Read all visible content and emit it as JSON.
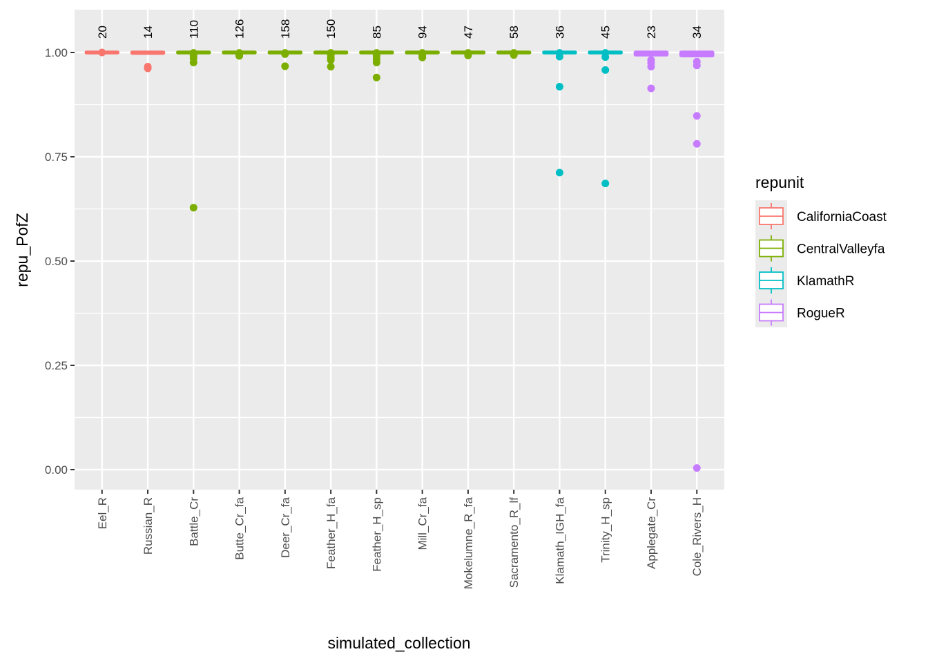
{
  "chart_data": {
    "type": "boxplot",
    "title": "",
    "xlabel": "simulated_collection",
    "ylabel": "repu_PofZ",
    "ylim": [
      -0.04,
      1.1
    ],
    "yticks": [
      0.0,
      0.25,
      0.5,
      0.75,
      1.0
    ],
    "ytick_labels": [
      "0.00",
      "0.25",
      "0.50",
      "0.75",
      "1.00"
    ],
    "grid": true,
    "legend": {
      "title": "repunit",
      "position": "right",
      "entries": [
        {
          "name": "CaliforniaCoast",
          "color": "#F8766D"
        },
        {
          "name": "CentralValleyfa",
          "color": "#7CAE00"
        },
        {
          "name": "KlamathR",
          "color": "#00BFC4"
        },
        {
          "name": "RogueR",
          "color": "#C77CFF"
        }
      ]
    },
    "categories": [
      {
        "name": "Eel_R",
        "repunit": "CaliforniaCoast",
        "n": "20",
        "median": 1.0,
        "q1": 1.0,
        "q3": 1.0,
        "outliers": [
          1.0
        ]
      },
      {
        "name": "Russian_R",
        "repunit": "CaliforniaCoast",
        "n": "14",
        "median": 1.0,
        "q1": 0.999,
        "q3": 1.0,
        "outliers": [
          0.966,
          0.962
        ]
      },
      {
        "name": "Battle_Cr",
        "repunit": "CentralValleyfa",
        "n": "110",
        "median": 1.0,
        "q1": 1.0,
        "q3": 1.0,
        "outliers": [
          0.999,
          0.993,
          0.986,
          0.976,
          0.628
        ]
      },
      {
        "name": "Butte_Cr_fa",
        "repunit": "CentralValleyfa",
        "n": "126",
        "median": 1.0,
        "q1": 1.0,
        "q3": 1.0,
        "outliers": [
          0.999,
          0.995,
          0.992
        ]
      },
      {
        "name": "Deer_Cr_fa",
        "repunit": "CentralValleyfa",
        "n": "158",
        "median": 1.0,
        "q1": 1.0,
        "q3": 1.0,
        "outliers": [
          0.999,
          0.996,
          0.967
        ]
      },
      {
        "name": "Feather_H_fa",
        "repunit": "CentralValleyfa",
        "n": "150",
        "median": 1.0,
        "q1": 1.0,
        "q3": 1.0,
        "outliers": [
          0.999,
          0.994,
          0.988,
          0.982,
          0.966
        ]
      },
      {
        "name": "Feather_H_sp",
        "repunit": "CentralValleyfa",
        "n": "85",
        "median": 1.0,
        "q1": 1.0,
        "q3": 1.0,
        "outliers": [
          0.999,
          0.992,
          0.984,
          0.976,
          0.94
        ]
      },
      {
        "name": "Mill_Cr_fa",
        "repunit": "CentralValleyfa",
        "n": "94",
        "median": 1.0,
        "q1": 1.0,
        "q3": 1.0,
        "outliers": [
          0.999,
          0.993,
          0.988
        ]
      },
      {
        "name": "Mokelumne_R_fa",
        "repunit": "CentralValleyfa",
        "n": "47",
        "median": 1.0,
        "q1": 1.0,
        "q3": 1.0,
        "outliers": [
          0.999,
          0.993
        ]
      },
      {
        "name": "Sacramento_R_lf",
        "repunit": "CentralValleyfa",
        "n": "58",
        "median": 1.0,
        "q1": 1.0,
        "q3": 1.0,
        "outliers": [
          0.999,
          0.994
        ]
      },
      {
        "name": "Klamath_IGH_fa",
        "repunit": "KlamathR",
        "n": "36",
        "median": 1.0,
        "q1": 1.0,
        "q3": 1.0,
        "outliers": [
          0.999,
          0.99,
          0.918,
          0.712
        ]
      },
      {
        "name": "Trinity_H_sp",
        "repunit": "KlamathR",
        "n": "45",
        "median": 1.0,
        "q1": 1.0,
        "q3": 1.0,
        "outliers": [
          0.999,
          0.989,
          0.958,
          0.686
        ]
      },
      {
        "name": "Applegate_Cr",
        "repunit": "RogueR",
        "n": "23",
        "median": 0.998,
        "q1": 0.995,
        "q3": 1.0,
        "outliers": [
          0.982,
          0.975,
          0.966,
          0.914
        ]
      },
      {
        "name": "Cole_Rivers_H",
        "repunit": "RogueR",
        "n": "34",
        "median": 0.998,
        "q1": 0.993,
        "q3": 1.0,
        "outliers": [
          0.978,
          0.969,
          0.848,
          0.781,
          0.004
        ]
      }
    ]
  }
}
